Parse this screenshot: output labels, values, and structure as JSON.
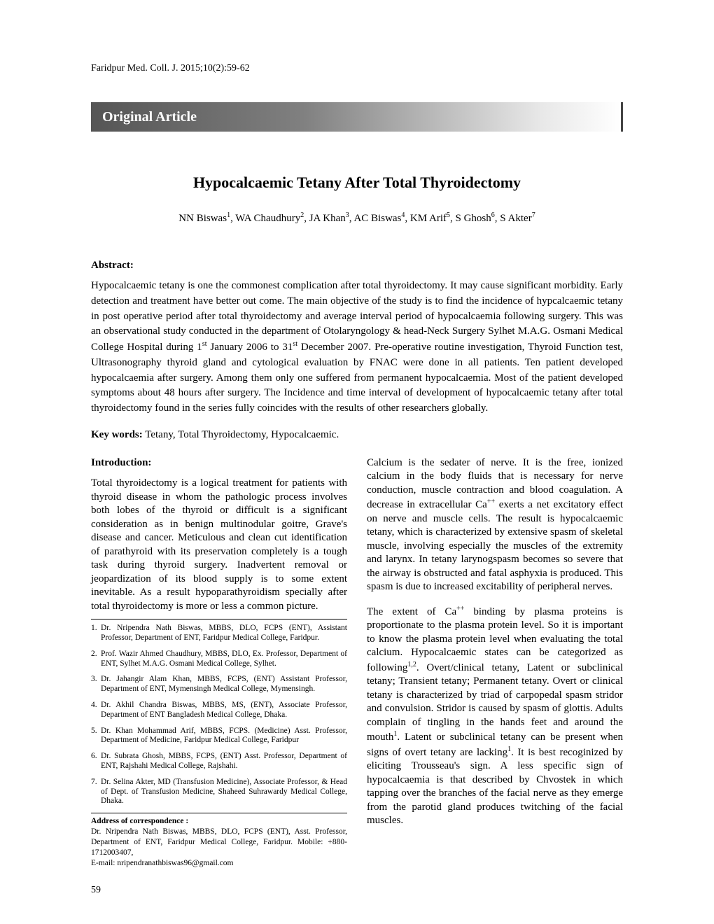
{
  "citation": "Faridpur Med. Coll. J. 2015;10(2):59-62",
  "banner_title": "Original Article",
  "article_title": "Hypocalcaemic Tetany After Total Thyroidectomy",
  "authors_html": "NN Biswas<sup class='sup'>1</sup>, WA Chaudhury<sup class='sup'>2</sup>, JA Khan<sup class='sup'>3</sup>, AC Biswas<sup class='sup'>4</sup>, KM Arif<sup class='sup'>5</sup>, S Ghosh<sup class='sup'>6</sup>, S Akter<sup class='sup'>7</sup>",
  "abstract_head": "Abstract:",
  "abstract_html": "Hypocalcaemic tetany is one the commonest complication after total thyroidectomy. It may cause significant morbidity. Early detection and treatment have better out come. The main objective of the study is to find the incidence of hypcalcaemic tetany in post operative period after total thyroidectomy and average interval period of hypocalcaemia following surgery. This was an observational study conducted in the department of Otolaryngology &amp; head-Neck Surgery Sylhet M.A.G. Osmani Medical College Hospital during 1<sup class='sup'>st</sup> January 2006 to 31<sup class='sup'>st</sup> December 2007. Pre-operative routine investigation, Thyroid Function test, Ultrasonography thyroid gland and cytological evaluation by FNAC were done in all patients. Ten patient developed hypocalcaemia after surgery. Among them only one suffered from permanent hypocalcaemia. Most of the patient developed symptoms about 48 hours after surgery. The Incidence and time interval of development of hypocalcaemic tetany after total thyroidectomy found in the series fully coincides with the results of other researchers globally.",
  "keywords_label": "Key words:",
  "keywords_text": " Tetany, Total Thyroidectomy, Hypocalcaemic.",
  "intro_head": "Introduction:",
  "intro_para": "Total thyroidectomy is a logical treatment for patients with thyroid disease in whom the pathologic process involves both lobes of the thyroid or difficult is a significant consideration as in benign multinodular goitre, Grave's disease and cancer. Meticulous and clean cut identification of parathyroid with its preservation completely is a tough task during thyroid surgery. Inadvertent removal or jeopardization of its blood supply is to some extent inevitable. As a result hypoparathyroidism specially after total thyroidectomy is more or less a common picture.",
  "affiliations": [
    {
      "n": "1.",
      "t": "Dr. Nripendra Nath Biswas, MBBS, DLO, FCPS (ENT), Assistant Professor, Department of ENT, Faridpur Medical College, Faridpur."
    },
    {
      "n": "2.",
      "t": "Prof. Wazir Ahmed Chaudhury, MBBS, DLO, Ex. Professor, Department of ENT, Sylhet M.A.G. Osmani Medical College, Sylhet."
    },
    {
      "n": "3.",
      "t": "Dr. Jahangir Alam Khan, MBBS, FCPS, (ENT) Assistant Professor, Department of ENT, Mymensingh Medical College, Mymensingh."
    },
    {
      "n": "4.",
      "t": "Dr. Akhil Chandra Biswas, MBBS, MS, (ENT), Associate Professor, Department of ENT Bangladesh Medical College, Dhaka."
    },
    {
      "n": "5.",
      "t": "Dr. Khan Mohammad Arif, MBBS, FCPS. (Medicine) Asst. Professor, Department of Medicine, Faridpur Medical College, Faridpur"
    },
    {
      "n": "6.",
      "t": "Dr. Subrata Ghosh, MBBS, FCPS, (ENT) Asst. Professor, Department of ENT, Rajshahi Medical College, Rajshahi."
    },
    {
      "n": "7.",
      "t": "Dr. Selina Akter, MD (Transfusion Medicine), Associate Professor, & Head of Dept. of Transfusion Medicine, Shaheed Suhrawardy Medical College, Dhaka."
    }
  ],
  "corr_label": "Address of correspondence :",
  "corr_text": "Dr. Nripendra Nath Biswas, MBBS, DLO, FCPS (ENT), Asst. Professor, Department of ENT, Faridpur Medical College, Faridpur. Mobile: +880-1712003407,",
  "corr_email": "E-mail: nripendranathbiswas96@gmail.com",
  "right_para1_html": "Calcium is the sedater of nerve. It is the free, ionized calcium in the body fluids that is necessary for nerve conduction, muscle contraction and blood coagulation. A decrease in extracellular Ca<sup class='sup'>++</sup> exerts a net excitatory effect on nerve and muscle cells. The result is hypocalcaemic tetany, which is characterized by extensive spasm of skeletal muscle, involving especially the muscles of the extremity and larynx. In tetany larynogspasm becomes so severe that the airway is obstructed and fatal asphyxia is produced. This spasm is due to increased excitability of peripheral nerves.",
  "right_para2_html": "The extent of Ca<sup class='sup'>++</sup> binding by plasma proteins is proportionate to the plasma protein level. So it is important to know the plasma protein level when evaluating the total calcium. Hypocalcaemic states can be categorized as following<sup class='sup'>1,2</sup>. Overt/clinical tetany, Latent or subclinical tetany; Transient tetany; Permanent tetany. Overt or clinical tetany is characterized by triad of carpopedal spasm stridor and convulsion. Stridor is caused by spasm of glottis. Adults complain of tingling in the hands feet and around the mouth<sup class='sup'>1</sup>. Latent or subclinical tetany can be present when signs of overt tetany are lacking<sup class='sup'>1</sup>. It is best recoginized by eliciting Trousseau's sign. A less specific sign of hypocalcaemia is that described by Chvostek in which tapping over the branches of the facial nerve as they emerge from the parotid gland produces twitching of the facial muscles.",
  "page_number": "59"
}
